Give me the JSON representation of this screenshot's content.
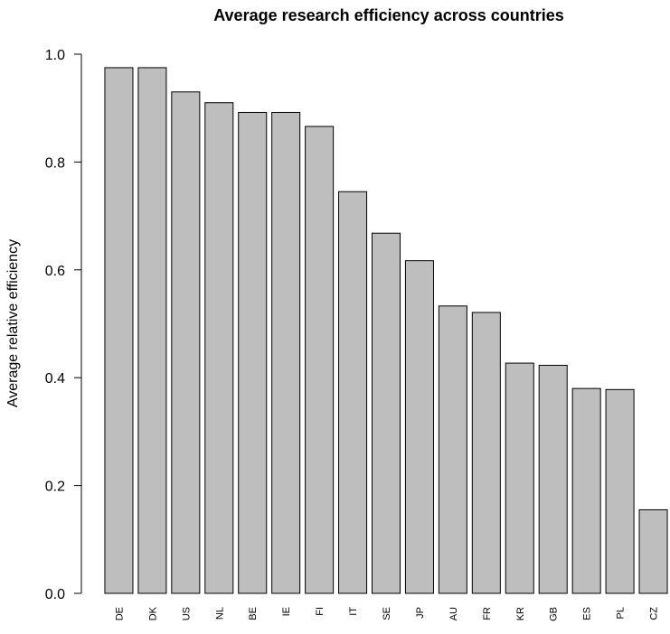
{
  "chart_data": {
    "type": "bar",
    "title": "Average research efficiency across countries",
    "xlabel": "",
    "ylabel": "Average relative efficiency",
    "ylim": [
      0,
      1.0
    ],
    "yticks": [
      "0.0",
      "0.2",
      "0.4",
      "0.6",
      "0.8",
      "1.0"
    ],
    "categories": [
      "DE",
      "DK",
      "US",
      "NL",
      "BE",
      "IE",
      "FI",
      "IT",
      "SE",
      "JP",
      "AU",
      "FR",
      "KR",
      "GB",
      "ES",
      "PL",
      "CZ"
    ],
    "values": [
      0.975,
      0.975,
      0.93,
      0.91,
      0.892,
      0.892,
      0.866,
      0.745,
      0.668,
      0.617,
      0.533,
      0.521,
      0.427,
      0.423,
      0.38,
      0.378,
      0.155
    ],
    "colors": {
      "bar_fill": "#bebebe",
      "bar_stroke": "#000000"
    },
    "grid": false,
    "legend": "none"
  }
}
